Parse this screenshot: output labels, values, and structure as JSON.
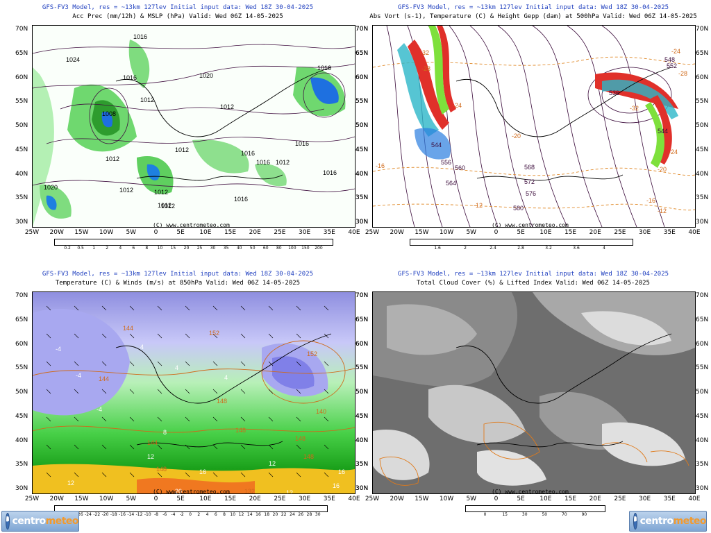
{
  "panels": {
    "tl": {
      "header": "GFS-FV3 Model, res = ~13km 127lev   Initial input data: Wed 18Z 30-04-2025",
      "title": "Acc Prec (mm/12h) & MSLP (hPa)  Valid: Wed 06Z 14-05-2025",
      "credit": "(C) www.centrometeo.com",
      "colorbar": {
        "ticks": [
          "0.2",
          "0.5",
          "1",
          "2",
          "4",
          "6",
          "8",
          "10",
          "15",
          "20",
          "25",
          "30",
          "35",
          "40",
          "50",
          "60",
          "80",
          "100",
          "150",
          "200"
        ],
        "colors": [
          "#ffffff",
          "#d9ffd9",
          "#a8f7a8",
          "#66e266",
          "#2ec12e",
          "#14a014",
          "#0b7d0b",
          "#1e90ff",
          "#0a5fd6",
          "#0b3aa8",
          "#6a2bb8",
          "#8d1fd2",
          "#b21fd9",
          "#d61fb8",
          "#e0148a",
          "#e0145a",
          "#e0301e",
          "#e05a1e",
          "#e08a1e",
          "#e0b01e"
        ],
        "map_labels": [
          "1016",
          "1024",
          "1016",
          "1020",
          "1008",
          "1012",
          "1012",
          "1016",
          "1012",
          "1012",
          "1012",
          "1016",
          "1016",
          "1016",
          "1016",
          "1016",
          "1012",
          "1012",
          "1020",
          "1012",
          "1012"
        ]
      }
    },
    "tr": {
      "header": "GFS-FV3 Model, res = ~13km 127lev   Initial input data: Wed 18Z 30-04-2025",
      "title": "Abs Vort (s-1), Temperature (C) & Height Gepp (dam) at 500hPa  Valid: Wed 06Z 14-05-2025",
      "credit": "(C) www.centrometeo.com",
      "colorbar": {
        "ticks": [
          "1.6",
          "2",
          "2.4",
          "2.8",
          "3.2",
          "3.6",
          "4"
        ],
        "colors": [
          "#ffffff",
          "#d8f5a0",
          "#7ee03c",
          "#2cb6c8",
          "#2a7de0",
          "#e08a2a",
          "#e03a2a"
        ],
        "map_labels": [
          "-32",
          "-28",
          "-24",
          "-20",
          "-16",
          "-12",
          "544",
          "548",
          "552",
          "556",
          "560",
          "564",
          "568",
          "572",
          "576",
          "580",
          "-24",
          "-28",
          "-32",
          "536",
          "544",
          "-20",
          "-24",
          "-16",
          "-12"
        ]
      }
    },
    "bl": {
      "header": "GFS-FV3 Model, res = ~13km 127lev   Initial input data: Wed 18Z 30-04-2025",
      "title": "Temperature (C) & Winds (m/s) at 850hPa  Valid: Wed 06Z 14-05-2025",
      "credit": "(C) www.centrometeo.com",
      "colorbar": {
        "ticks": [
          "-30",
          "-28",
          "-26",
          "-24",
          "-22",
          "-20",
          "-18",
          "-16",
          "-14",
          "-12",
          "-10",
          "-8",
          "-6",
          "-4",
          "-2",
          "0",
          "2",
          "4",
          "6",
          "8",
          "10",
          "12",
          "14",
          "16",
          "18",
          "20",
          "22",
          "24",
          "26",
          "28",
          "30"
        ],
        "colors": [
          "#5b0a5b",
          "#7a0a7a",
          "#9a1a9a",
          "#b82ab8",
          "#d14ad1",
          "#e07ae0",
          "#f0aaf0",
          "#1a1a8a",
          "#2a2ab0",
          "#3a3ad0",
          "#5a5ae0",
          "#8080e8",
          "#a8a8f0",
          "#c8c8f8",
          "#e0e0fc",
          "#f0fff0",
          "#c8f8c8",
          "#9ef09e",
          "#70e070",
          "#48d048",
          "#2ab82a",
          "#1aa01a",
          "#108810",
          "#f0e020",
          "#f0c020",
          "#f0a020",
          "#f07820",
          "#e05020",
          "#d03020",
          "#b01818"
        ],
        "map_labels": [
          "-4",
          "144",
          "-4",
          "-4",
          "4",
          "4",
          "152",
          "144",
          "4",
          "148",
          "8",
          "148",
          "152",
          "140",
          "148",
          "144",
          "12",
          "148",
          "12",
          "148",
          "16",
          "20",
          "16",
          "12",
          "132",
          "24",
          "20",
          "16",
          "12",
          "16"
        ]
      }
    },
    "br": {
      "header": "GFS-FV3 Model, res = ~13km 127lev   Initial input data: Wed 18Z 30-04-2025",
      "title": "Total Cloud Cover (%) & Lifted Index  Valid: Wed 06Z 14-05-2025",
      "credit": "(C) www.centrometeo.com",
      "colorbar": {
        "ticks": [
          "0",
          "15",
          "30",
          "50",
          "70",
          "90"
        ],
        "colors": [
          "#ffffff",
          "#e2e2e2",
          "#c6c6c6",
          "#a8a8a8",
          "#8c8c8c",
          "#707070"
        ]
      }
    }
  },
  "axes": {
    "lat_labels": [
      "70N",
      "65N",
      "60N",
      "55N",
      "50N",
      "45N",
      "40N",
      "35N",
      "30N"
    ],
    "lon_labels": [
      "25W",
      "20W",
      "15W",
      "10W",
      "5W",
      "0",
      "5E",
      "10E",
      "15E",
      "20E",
      "25E",
      "30E",
      "35E",
      "40E"
    ]
  },
  "logo": {
    "word_a": "centro",
    "word_b": "meteo"
  }
}
